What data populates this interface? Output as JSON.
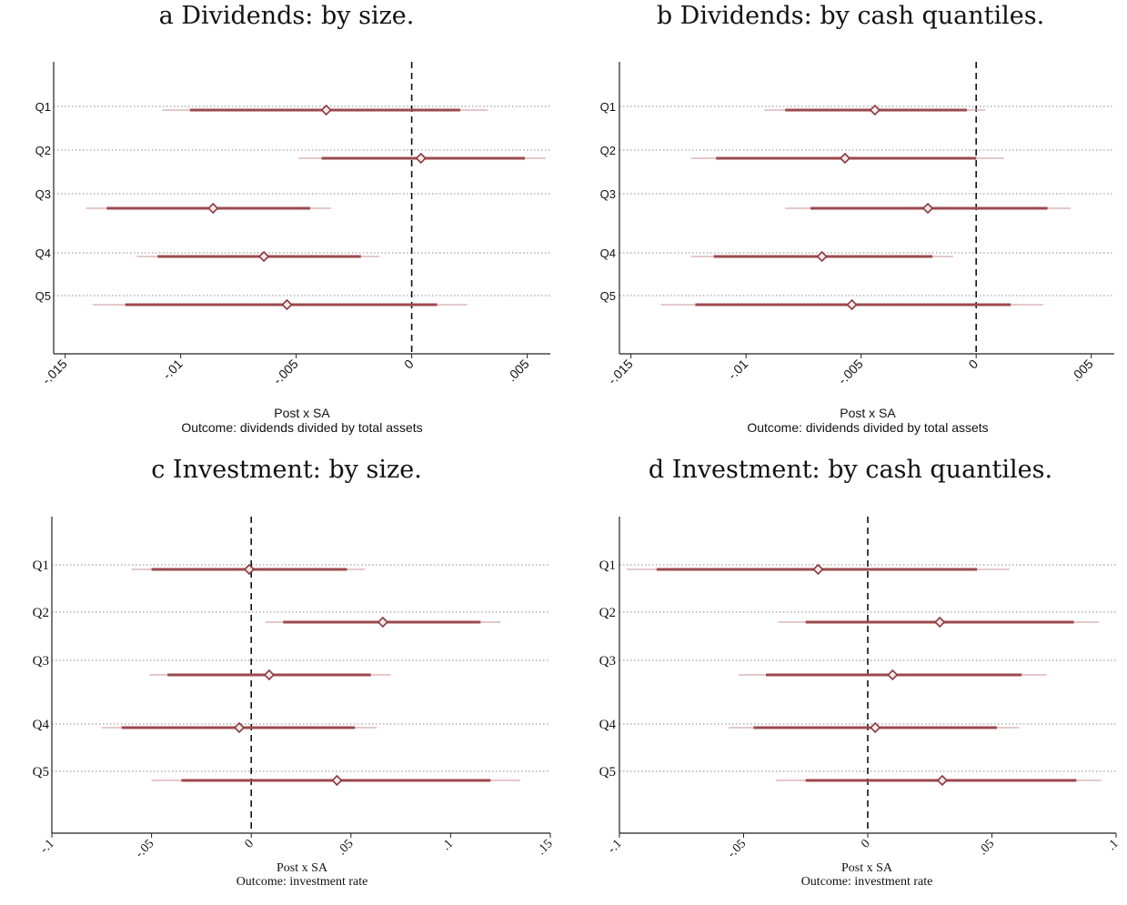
{
  "chart_data": [
    {
      "id": "a",
      "type": "coefficient-plot",
      "title": "a Dividends: by size.",
      "xlabel": "Post x SA",
      "note": "Outcome: dividends divided by total assets",
      "categories": [
        "Q1",
        "Q2",
        "Q3",
        "Q4",
        "Q5"
      ],
      "xlim": [
        -0.0155,
        0.006
      ],
      "xticks": [
        -0.015,
        -0.01,
        -0.005,
        0,
        0.005
      ],
      "xtick_labels": [
        "-.015",
        "-.01",
        "-.005",
        "0",
        ".005"
      ],
      "reference_line": 0,
      "estimates": [
        -0.0037,
        0.0004,
        -0.0086,
        -0.0064,
        -0.0054
      ],
      "ci_inner": [
        [
          -0.0096,
          0.0021
        ],
        [
          -0.0039,
          0.0049
        ],
        [
          -0.0132,
          -0.0044
        ],
        [
          -0.011,
          -0.0022
        ],
        [
          -0.0124,
          0.0011
        ]
      ],
      "ci_outer": [
        [
          -0.0108,
          0.0033
        ],
        [
          -0.0049,
          0.0058
        ],
        [
          -0.0141,
          -0.0035
        ],
        [
          -0.0119,
          -0.0014
        ],
        [
          -0.0138,
          0.0024
        ]
      ]
    },
    {
      "id": "b",
      "type": "coefficient-plot",
      "title": "b Dividends: by cash quantiles.",
      "xlabel": "Post x SA",
      "note": "Outcome: dividends divided by total assets",
      "categories": [
        "Q1",
        "Q2",
        "Q3",
        "Q4",
        "Q5"
      ],
      "xlim": [
        -0.0155,
        0.006
      ],
      "xticks": [
        -0.015,
        -0.01,
        -0.005,
        0,
        0.005
      ],
      "xtick_labels": [
        "-.015",
        "-.01",
        "-.005",
        "0",
        ".005"
      ],
      "reference_line": 0,
      "estimates": [
        -0.0044,
        -0.0057,
        -0.0021,
        -0.0067,
        -0.0054
      ],
      "ci_inner": [
        [
          -0.0083,
          -0.0004
        ],
        [
          -0.0113,
          0.0
        ],
        [
          -0.0072,
          0.0031
        ],
        [
          -0.0114,
          -0.0019
        ],
        [
          -0.0122,
          0.0015
        ]
      ],
      "ci_outer": [
        [
          -0.0092,
          0.0004
        ],
        [
          -0.0124,
          0.0012
        ],
        [
          -0.0083,
          0.0041
        ],
        [
          -0.0124,
          -0.001
        ],
        [
          -0.0137,
          0.0029
        ]
      ]
    },
    {
      "id": "c",
      "type": "coefficient-plot",
      "title": "c Investment: by size.",
      "xlabel": "Post x SA",
      "note": "Outcome: investment rate",
      "categories": [
        "Q1",
        "Q2",
        "Q3",
        "Q4",
        "Q5"
      ],
      "xlim": [
        -0.1,
        0.15
      ],
      "xticks": [
        -0.1,
        -0.05,
        0,
        0.05,
        0.1,
        0.15
      ],
      "xtick_labels": [
        "-.1",
        "-.05",
        "0",
        ".05",
        ".1",
        ".15"
      ],
      "reference_line": 0,
      "estimates": [
        -0.001,
        0.066,
        0.009,
        -0.006,
        0.043
      ],
      "ci_inner": [
        [
          -0.05,
          0.048
        ],
        [
          0.016,
          0.115
        ],
        [
          -0.042,
          0.06
        ],
        [
          -0.065,
          0.052
        ],
        [
          -0.035,
          0.12
        ]
      ],
      "ci_outer": [
        [
          -0.06,
          0.057
        ],
        [
          0.007,
          0.125
        ],
        [
          -0.051,
          0.07
        ],
        [
          -0.075,
          0.063
        ],
        [
          -0.05,
          0.135
        ]
      ]
    },
    {
      "id": "d",
      "type": "coefficient-plot",
      "title": "d Investment: by cash quantiles.",
      "xlabel": "Post x SA",
      "note": "Outcome: investment rate",
      "categories": [
        "Q1",
        "Q2",
        "Q3",
        "Q4",
        "Q5"
      ],
      "xlim": [
        -0.1,
        0.1
      ],
      "xticks": [
        -0.1,
        -0.05,
        0,
        0.05,
        0.1
      ],
      "xtick_labels": [
        "-.1",
        "-.05",
        "0",
        ".05",
        ".1"
      ],
      "reference_line": 0,
      "estimates": [
        -0.02,
        0.029,
        0.01,
        0.003,
        0.03
      ],
      "ci_inner": [
        [
          -0.085,
          0.044
        ],
        [
          -0.025,
          0.083
        ],
        [
          -0.041,
          0.062
        ],
        [
          -0.046,
          0.052
        ],
        [
          -0.025,
          0.084
        ]
      ],
      "ci_outer": [
        [
          -0.097,
          0.057
        ],
        [
          -0.036,
          0.093
        ],
        [
          -0.052,
          0.072
        ],
        [
          -0.056,
          0.061
        ],
        [
          -0.037,
          0.094
        ]
      ]
    }
  ],
  "colors": {
    "marker": "#8b3a3e",
    "ci_inner": "#9b4a4e",
    "ci_outer": "#d4a7aa",
    "grid": "#8a8a8a",
    "axis": "#222222",
    "reference": "#111111"
  }
}
